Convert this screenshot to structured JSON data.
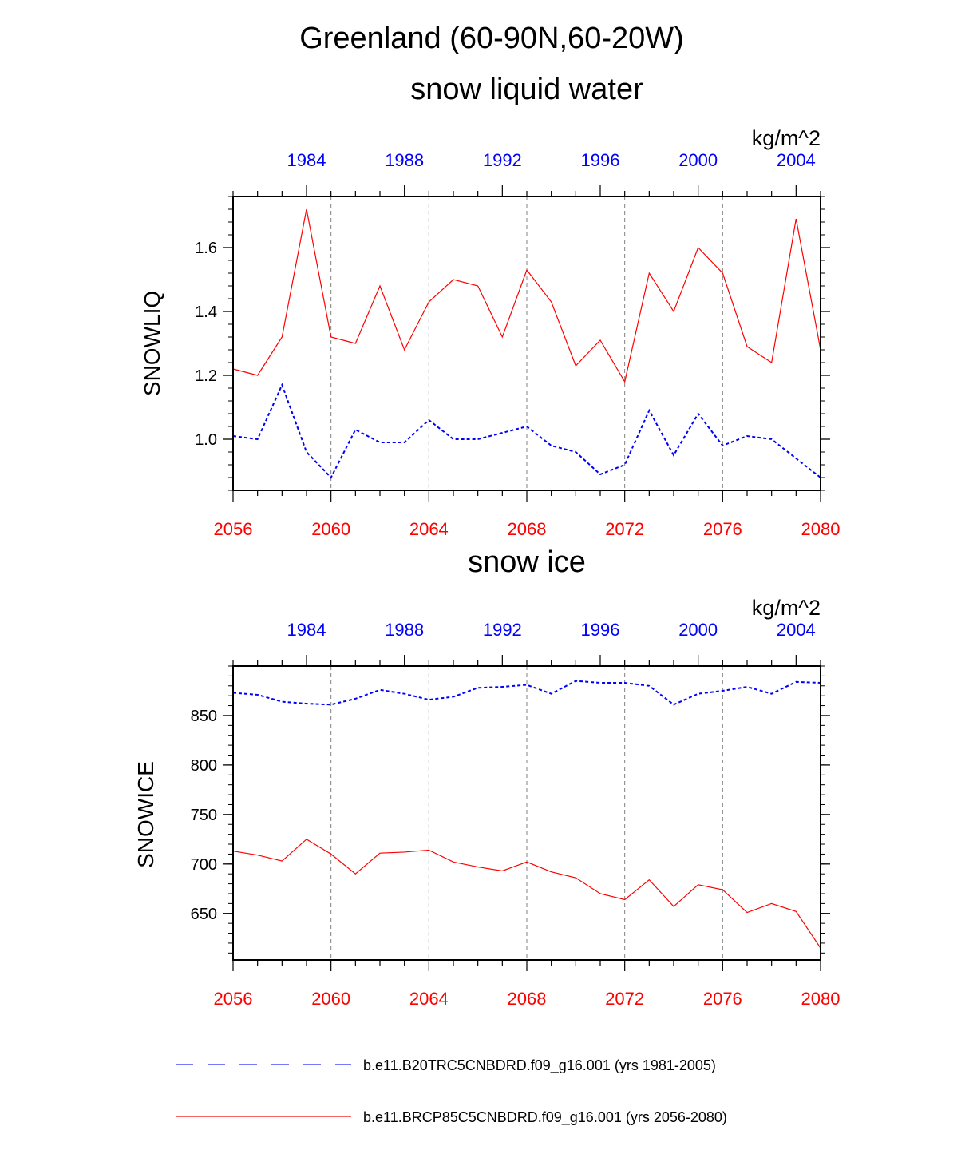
{
  "figure": {
    "main_title": "Greenland (60-90N,60-20W)"
  },
  "chart_data": [
    {
      "type": "line",
      "title": "snow liquid water",
      "ylabel": "SNOWLIQ",
      "units": "kg/m^2",
      "xlim": [
        2056,
        2080
      ],
      "ylim": [
        0.84,
        1.76
      ],
      "y_major_ticks": [
        1.0,
        1.2,
        1.4,
        1.6
      ],
      "y_tick_labels": [
        "1.0",
        "1.2",
        "1.4",
        "1.6"
      ],
      "y_minor_step": 0.04,
      "bottom_axis_ticks": [
        2056,
        2060,
        2064,
        2068,
        2072,
        2076,
        2080
      ],
      "bottom_axis_labels": [
        "2056",
        "2060",
        "2064",
        "2068",
        "2072",
        "2076",
        "2080"
      ],
      "top_axis_ticks": [
        1984,
        1988,
        1992,
        1996,
        2000,
        2004
      ],
      "top_axis_labels": [
        "1984",
        "1988",
        "1992",
        "1996",
        "2000",
        "2004"
      ],
      "top_axis_offset": -75,
      "gridlines_at": [
        2060,
        2064,
        2068,
        2072,
        2076
      ],
      "series": [
        {
          "name": "b.e11.BRCP85C5CNBDRD.f09_g16.001 (yrs 2056-2080)",
          "axis": "bottom",
          "color": "#ff0000",
          "dash": "solid",
          "x": [
            2056,
            2057,
            2058,
            2059,
            2060,
            2061,
            2062,
            2063,
            2064,
            2065,
            2066,
            2067,
            2068,
            2069,
            2070,
            2071,
            2072,
            2073,
            2074,
            2075,
            2076,
            2077,
            2078,
            2079,
            2080
          ],
          "values": [
            1.22,
            1.2,
            1.32,
            1.72,
            1.32,
            1.3,
            1.48,
            1.28,
            1.43,
            1.5,
            1.48,
            1.32,
            1.53,
            1.43,
            1.23,
            1.31,
            1.18,
            1.52,
            1.4,
            1.6,
            1.52,
            1.29,
            1.24,
            1.69,
            1.28
          ]
        },
        {
          "name": "b.e11.B20TRC5CNBDRD.f09_g16.001 (yrs 1981-2005)",
          "axis": "top",
          "color": "#0000ff",
          "dash": "dotted",
          "x": [
            1981,
            1982,
            1983,
            1984,
            1985,
            1986,
            1987,
            1988,
            1989,
            1990,
            1991,
            1992,
            1993,
            1994,
            1995,
            1996,
            1997,
            1998,
            1999,
            2000,
            2001,
            2002,
            2003,
            2004,
            2005
          ],
          "values": [
            1.01,
            1.0,
            1.17,
            0.96,
            0.88,
            1.03,
            0.99,
            0.99,
            1.06,
            1.0,
            1.0,
            1.02,
            1.04,
            0.98,
            0.96,
            0.89,
            0.92,
            1.09,
            0.95,
            1.08,
            0.98,
            1.01,
            1.0,
            0.94,
            0.88
          ]
        }
      ]
    },
    {
      "type": "line",
      "title": "snow ice",
      "ylabel": "SNOWICE",
      "units": "kg/m^2",
      "xlim": [
        2056,
        2080
      ],
      "ylim": [
        603,
        900
      ],
      "y_major_ticks": [
        650,
        700,
        750,
        800,
        850
      ],
      "y_tick_labels": [
        "650",
        "700",
        "750",
        "800",
        "850"
      ],
      "y_minor_step": 10,
      "bottom_axis_ticks": [
        2056,
        2060,
        2064,
        2068,
        2072,
        2076,
        2080
      ],
      "bottom_axis_labels": [
        "2056",
        "2060",
        "2064",
        "2068",
        "2072",
        "2076",
        "2080"
      ],
      "top_axis_ticks": [
        1984,
        1988,
        1992,
        1996,
        2000,
        2004
      ],
      "top_axis_labels": [
        "1984",
        "1988",
        "1992",
        "1996",
        "2000",
        "2004"
      ],
      "top_axis_offset": -75,
      "gridlines_at": [
        2060,
        2064,
        2068,
        2072,
        2076
      ],
      "series": [
        {
          "name": "b.e11.BRCP85C5CNBDRD.f09_g16.001 (yrs 2056-2080)",
          "axis": "bottom",
          "color": "#ff0000",
          "dash": "solid",
          "x": [
            2056,
            2057,
            2058,
            2059,
            2060,
            2061,
            2062,
            2063,
            2064,
            2065,
            2066,
            2067,
            2068,
            2069,
            2070,
            2071,
            2072,
            2073,
            2074,
            2075,
            2076,
            2077,
            2078,
            2079,
            2080
          ],
          "values": [
            713,
            709,
            703,
            725,
            710,
            690,
            711,
            712,
            714,
            702,
            697,
            693,
            702,
            692,
            686,
            670,
            664,
            684,
            657,
            679,
            674,
            651,
            660,
            652,
            615
          ]
        },
        {
          "name": "b.e11.B20TRC5CNBDRD.f09_g16.001 (yrs 1981-2005)",
          "axis": "top",
          "color": "#0000ff",
          "dash": "dotted",
          "x": [
            1981,
            1982,
            1983,
            1984,
            1985,
            1986,
            1987,
            1988,
            1989,
            1990,
            1991,
            1992,
            1993,
            1994,
            1995,
            1996,
            1997,
            1998,
            1999,
            2000,
            2001,
            2002,
            2003,
            2004,
            2005
          ],
          "values": [
            873,
            871,
            864,
            862,
            861,
            867,
            876,
            872,
            866,
            869,
            878,
            879,
            881,
            872,
            885,
            883,
            883,
            880,
            861,
            872,
            875,
            879,
            872,
            884,
            883
          ]
        }
      ]
    }
  ],
  "legend": {
    "placement": "bottom",
    "entries": [
      {
        "label": "b.e11.B20TRC5CNBDRD.f09_g16.001 (yrs 1981-2005)",
        "color": "#4b4bff",
        "dash": "dashed"
      },
      {
        "label": "b.e11.BRCP85C5CNBDRD.f09_g16.001 (yrs 2056-2080)",
        "color": "#ff0000",
        "dash": "solid"
      }
    ]
  },
  "colors": {
    "bottom_axis_labels": "#ff0000",
    "top_axis_labels": "#0000ff",
    "axes": "#000000",
    "grid": "#808080"
  }
}
